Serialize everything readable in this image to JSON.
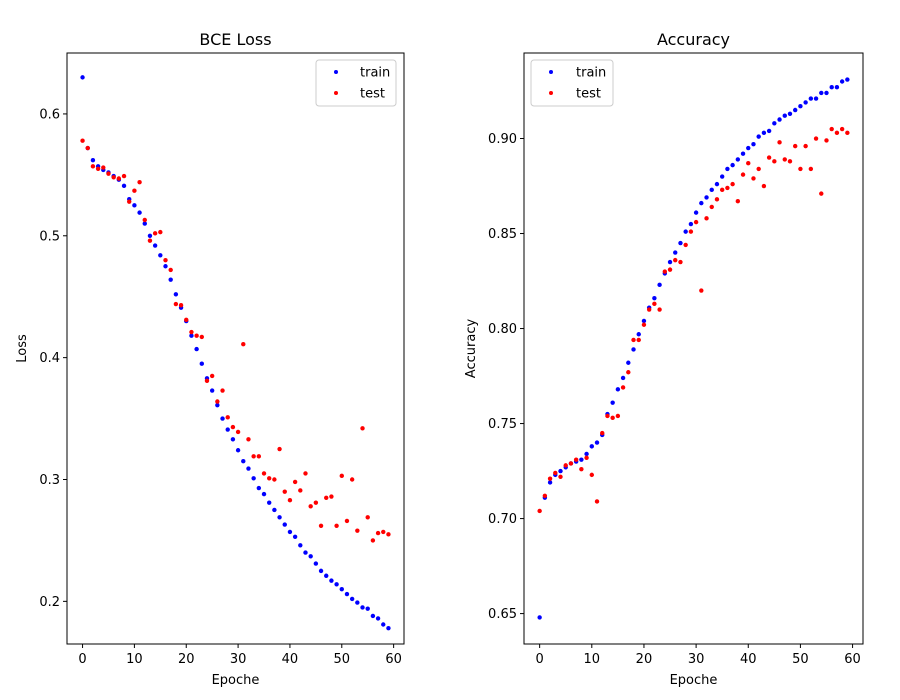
{
  "colors": {
    "train": "#0000ff",
    "test": "#ff0000"
  },
  "chart_data": [
    {
      "type": "scatter",
      "title": "BCE Loss",
      "xlabel": "Epoche",
      "ylabel": "Loss",
      "xlim": [
        -3,
        62
      ],
      "ylim": [
        0.165,
        0.65
      ],
      "xticks": [
        0,
        10,
        20,
        30,
        40,
        50,
        60
      ],
      "yticks": [
        0.2,
        0.3,
        0.4,
        0.5,
        0.6
      ],
      "ytick_labels": [
        "0.2",
        "0.3",
        "0.4",
        "0.5",
        "0.6"
      ],
      "legend": "top-right",
      "grid": false,
      "series": [
        {
          "name": "train",
          "color": "#0000ff",
          "x": [
            0,
            1,
            2,
            3,
            4,
            5,
            6,
            7,
            8,
            9,
            10,
            11,
            12,
            13,
            14,
            15,
            16,
            17,
            18,
            19,
            20,
            21,
            22,
            23,
            24,
            25,
            26,
            27,
            28,
            29,
            30,
            31,
            32,
            33,
            34,
            35,
            36,
            37,
            38,
            39,
            40,
            41,
            42,
            43,
            44,
            45,
            46,
            47,
            48,
            49,
            50,
            51,
            52,
            53,
            54,
            55,
            56,
            57,
            58,
            59
          ],
          "y": [
            0.63,
            0.572,
            0.562,
            0.557,
            0.554,
            0.552,
            0.549,
            0.546,
            0.541,
            0.53,
            0.525,
            0.519,
            0.51,
            0.5,
            0.492,
            0.484,
            0.475,
            0.464,
            0.452,
            0.441,
            0.43,
            0.418,
            0.407,
            0.395,
            0.383,
            0.373,
            0.361,
            0.35,
            0.341,
            0.333,
            0.324,
            0.315,
            0.309,
            0.301,
            0.293,
            0.288,
            0.281,
            0.275,
            0.269,
            0.263,
            0.257,
            0.253,
            0.246,
            0.24,
            0.237,
            0.231,
            0.225,
            0.221,
            0.217,
            0.214,
            0.21,
            0.206,
            0.202,
            0.199,
            0.195,
            0.194,
            0.188,
            0.186,
            0.181,
            0.178
          ]
        },
        {
          "name": "test",
          "color": "#ff0000",
          "x": [
            0,
            1,
            2,
            3,
            4,
            5,
            6,
            7,
            8,
            9,
            10,
            11,
            12,
            13,
            14,
            15,
            16,
            17,
            18,
            19,
            20,
            21,
            22,
            23,
            24,
            25,
            26,
            27,
            28,
            29,
            30,
            31,
            32,
            33,
            34,
            35,
            36,
            37,
            38,
            39,
            40,
            41,
            42,
            43,
            44,
            45,
            46,
            47,
            48,
            49,
            50,
            51,
            52,
            53,
            54,
            55,
            56,
            57,
            58,
            59
          ],
          "y": [
            0.578,
            0.572,
            0.557,
            0.555,
            0.556,
            0.551,
            0.548,
            0.547,
            0.549,
            0.528,
            0.537,
            0.544,
            0.513,
            0.496,
            0.502,
            0.503,
            0.48,
            0.472,
            0.444,
            0.443,
            0.431,
            0.421,
            0.418,
            0.417,
            0.381,
            0.385,
            0.364,
            0.373,
            0.351,
            0.343,
            0.339,
            0.411,
            0.333,
            0.319,
            0.319,
            0.305,
            0.301,
            0.3,
            0.325,
            0.29,
            0.283,
            0.298,
            0.291,
            0.305,
            0.278,
            0.281,
            0.262,
            0.285,
            0.286,
            0.262,
            0.303,
            0.266,
            0.3,
            0.258,
            0.342,
            0.269,
            0.25,
            0.256,
            0.257,
            0.255
          ]
        }
      ]
    },
    {
      "type": "scatter",
      "title": "Accuracy",
      "xlabel": "Epoche",
      "ylabel": "Accuracy",
      "xlim": [
        -3,
        62
      ],
      "ylim": [
        0.634,
        0.945
      ],
      "xticks": [
        0,
        10,
        20,
        30,
        40,
        50,
        60
      ],
      "yticks": [
        0.65,
        0.7,
        0.75,
        0.8,
        0.85,
        0.9
      ],
      "ytick_labels": [
        "0.65",
        "0.70",
        "0.75",
        "0.80",
        "0.85",
        "0.90"
      ],
      "legend": "top-left",
      "grid": false,
      "series": [
        {
          "name": "train",
          "color": "#0000ff",
          "x": [
            0,
            1,
            2,
            3,
            4,
            5,
            6,
            7,
            8,
            9,
            10,
            11,
            12,
            13,
            14,
            15,
            16,
            17,
            18,
            19,
            20,
            21,
            22,
            23,
            24,
            25,
            26,
            27,
            28,
            29,
            30,
            31,
            32,
            33,
            34,
            35,
            36,
            37,
            38,
            39,
            40,
            41,
            42,
            43,
            44,
            45,
            46,
            47,
            48,
            49,
            50,
            51,
            52,
            53,
            54,
            55,
            56,
            57,
            58,
            59
          ],
          "y": [
            0.648,
            0.711,
            0.719,
            0.723,
            0.725,
            0.727,
            0.729,
            0.73,
            0.731,
            0.734,
            0.738,
            0.74,
            0.744,
            0.755,
            0.761,
            0.768,
            0.774,
            0.782,
            0.789,
            0.797,
            0.804,
            0.811,
            0.816,
            0.823,
            0.829,
            0.835,
            0.84,
            0.845,
            0.851,
            0.855,
            0.861,
            0.866,
            0.869,
            0.873,
            0.876,
            0.88,
            0.884,
            0.886,
            0.889,
            0.892,
            0.895,
            0.897,
            0.901,
            0.903,
            0.904,
            0.908,
            0.91,
            0.912,
            0.913,
            0.915,
            0.917,
            0.919,
            0.921,
            0.921,
            0.924,
            0.924,
            0.927,
            0.927,
            0.93,
            0.931
          ]
        },
        {
          "name": "test",
          "color": "#ff0000",
          "x": [
            0,
            1,
            2,
            3,
            4,
            5,
            6,
            7,
            8,
            9,
            10,
            11,
            12,
            13,
            14,
            15,
            16,
            17,
            18,
            19,
            20,
            21,
            22,
            23,
            24,
            25,
            26,
            27,
            28,
            29,
            30,
            31,
            32,
            33,
            34,
            35,
            36,
            37,
            38,
            39,
            40,
            41,
            42,
            43,
            44,
            45,
            46,
            47,
            48,
            49,
            50,
            51,
            52,
            53,
            54,
            55,
            56,
            57,
            58,
            59
          ],
          "y": [
            0.704,
            0.712,
            0.721,
            0.724,
            0.722,
            0.728,
            0.729,
            0.731,
            0.726,
            0.732,
            0.723,
            0.709,
            0.745,
            0.754,
            0.753,
            0.754,
            0.769,
            0.777,
            0.794,
            0.794,
            0.802,
            0.81,
            0.813,
            0.81,
            0.83,
            0.831,
            0.836,
            0.835,
            0.844,
            0.851,
            0.856,
            0.82,
            0.858,
            0.864,
            0.868,
            0.873,
            0.874,
            0.876,
            0.867,
            0.881,
            0.887,
            0.879,
            0.884,
            0.875,
            0.89,
            0.888,
            0.898,
            0.889,
            0.888,
            0.896,
            0.884,
            0.896,
            0.884,
            0.9,
            0.871,
            0.899,
            0.905,
            0.903,
            0.905,
            0.903
          ]
        }
      ]
    }
  ]
}
